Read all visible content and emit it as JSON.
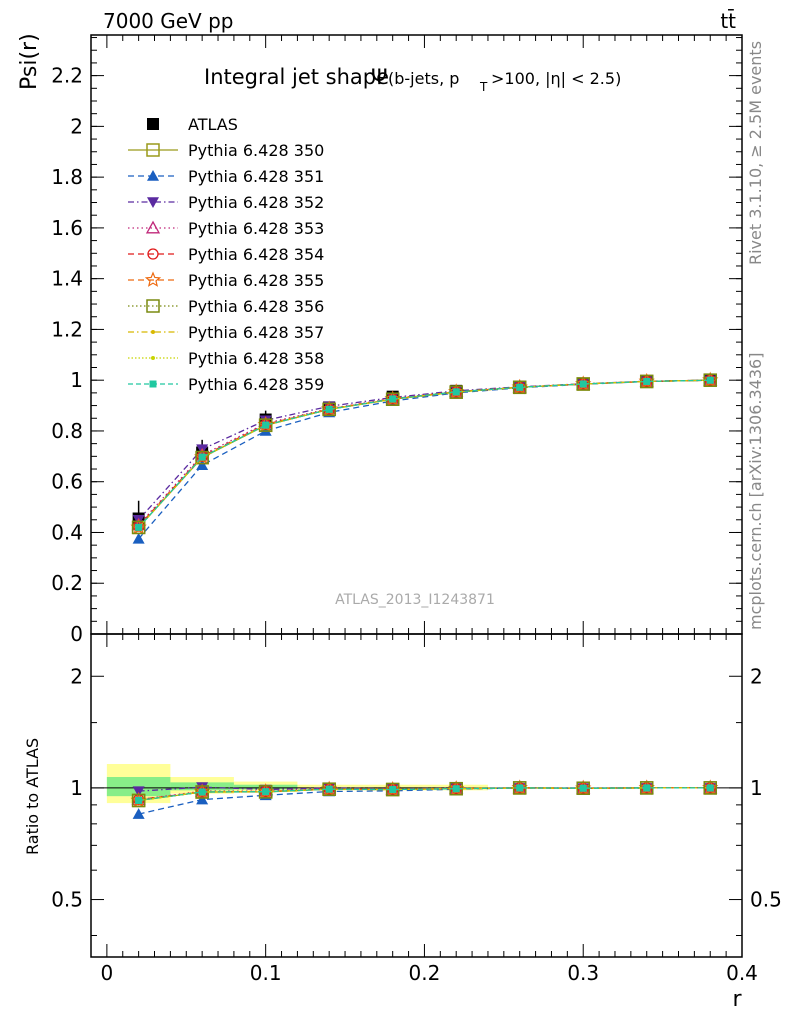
{
  "header": {
    "left": "7000 GeV pp",
    "right": "tt̄"
  },
  "side_labels": {
    "rivet": "Rivet 3.1.10, ≥ 2.5M events",
    "mcplots": "mcplots.cern.ch [arXiv:1306.3436]"
  },
  "title": {
    "main": "Integral jet shape",
    "symbol": "Ψ",
    "cond_a": "(b-jets, p",
    "cond_sub": "T",
    "cond_b": ">100, |η| < 2.5)"
  },
  "watermark": "ATLAS_2013_I1243871",
  "legend_entries": [
    "ATLAS",
    "Pythia 6.428 350",
    "Pythia 6.428 351",
    "Pythia 6.428 352",
    "Pythia 6.428 353",
    "Pythia 6.428 354",
    "Pythia 6.428 355",
    "Pythia 6.428 356",
    "Pythia 6.428 357",
    "Pythia 6.428 358",
    "Pythia 6.428 359"
  ],
  "chart_data": {
    "type": "line",
    "x": [
      0.02,
      0.06,
      0.1,
      0.14,
      0.18,
      0.22,
      0.26,
      0.3,
      0.34,
      0.38
    ],
    "main_panel": {
      "ylabel": "Psi(r)",
      "ylim": [
        0,
        2.36
      ],
      "yticks": [
        0,
        0.2,
        0.4,
        0.6,
        0.8,
        1,
        1.2,
        1.4,
        1.6,
        1.8,
        2,
        2.2
      ],
      "ytick_labels": [
        "0",
        "0.2",
        "0.4",
        "0.6",
        "0.8",
        "1",
        "1.2",
        "1.4",
        "1.6",
        "1.8",
        "2",
        "2.2"
      ]
    },
    "ratio_panel": {
      "ylabel": "Ratio to ATLAS",
      "scale": "log",
      "ylim": [
        0.35,
        2.6
      ],
      "yticks": [
        0.5,
        1,
        2
      ],
      "ytick_labels": [
        "0.5",
        "1",
        "2"
      ],
      "band_outer": [
        [
          0.0,
          0.04,
          0.91,
          1.16
        ],
        [
          0.04,
          0.08,
          0.965,
          1.07
        ],
        [
          0.08,
          0.12,
          0.975,
          1.04
        ],
        [
          0.12,
          0.24,
          0.985,
          1.02
        ]
      ],
      "band_inner": [
        [
          0.0,
          0.04,
          0.95,
          1.07
        ],
        [
          0.04,
          0.08,
          0.985,
          1.035
        ],
        [
          0.08,
          0.12,
          0.99,
          1.02
        ]
      ]
    },
    "xlabel": "r",
    "xlim": [
      -0.01,
      0.4
    ],
    "xticks": [
      0,
      0.1,
      0.2,
      0.3,
      0.4
    ],
    "xtick_labels": [
      "0",
      "0.1",
      "0.2",
      "0.3",
      "0.4"
    ],
    "data": {
      "name": "ATLAS",
      "y": [
        0.455,
        0.715,
        0.845,
        0.893,
        0.935,
        0.958,
        0.973,
        0.985,
        0.995,
        1.0
      ],
      "yerr_low": [
        0.04,
        0.03,
        0.02,
        0.015,
        0.01,
        0.01,
        0.005,
        0.005,
        0.003,
        0.002
      ],
      "yerr_high": [
        0.07,
        0.05,
        0.035,
        0.02,
        0.02,
        0.01,
        0.005,
        0.005,
        0.003,
        0.002
      ],
      "color": "#000000"
    },
    "series": [
      {
        "name": "Pythia 6.428 350",
        "color": "#9a9a1a",
        "marker": "open-square",
        "dash": "",
        "y": [
          0.42,
          0.695,
          0.822,
          0.885,
          0.925,
          0.953,
          0.972,
          0.985,
          0.995,
          1.0
        ],
        "ratio": [
          0.925,
          0.975,
          0.975,
          0.992,
          0.99,
          0.995,
          1.0,
          0.998,
          1.0,
          1.0
        ]
      },
      {
        "name": "Pythia 6.428 351",
        "color": "#1a5fc0",
        "marker": "filled-triangle-up",
        "dash": "6,4",
        "y": [
          0.375,
          0.665,
          0.8,
          0.873,
          0.918,
          0.95,
          0.97,
          0.984,
          0.995,
          1.0
        ],
        "ratio": [
          0.85,
          0.93,
          0.955,
          0.978,
          0.982,
          0.992,
          1.0,
          0.998,
          1.0,
          1.0
        ]
      },
      {
        "name": "Pythia 6.428 352",
        "color": "#5a2aa0",
        "marker": "filled-triangle-down",
        "dash": "6,3,1.5,3",
        "y": [
          0.45,
          0.728,
          0.842,
          0.897,
          0.932,
          0.958,
          0.974,
          0.986,
          0.996,
          1.0
        ],
        "ratio": [
          0.98,
          1.005,
          0.99,
          1.0,
          0.995,
          0.998,
          1.0,
          0.999,
          1.0,
          1.0
        ]
      },
      {
        "name": "Pythia 6.428 353",
        "color": "#c0287a",
        "marker": "open-triangle-up",
        "dash": "1.5,3",
        "y": [
          0.43,
          0.705,
          0.83,
          0.888,
          0.928,
          0.955,
          0.973,
          0.985,
          0.995,
          1.0
        ],
        "ratio": [
          0.93,
          0.98,
          0.98,
          0.995,
          0.992,
          0.997,
          1.0,
          0.999,
          1.0,
          1.0
        ]
      },
      {
        "name": "Pythia 6.428 354",
        "color": "#e01a1a",
        "marker": "open-circle",
        "dash": "6,4",
        "y": [
          0.425,
          0.7,
          0.826,
          0.886,
          0.927,
          0.954,
          0.972,
          0.985,
          0.995,
          1.0
        ],
        "ratio": [
          0.93,
          0.975,
          0.978,
          0.993,
          0.991,
          0.996,
          1.0,
          0.998,
          1.0,
          1.0
        ]
      },
      {
        "name": "Pythia 6.428 355",
        "color": "#ee6a10",
        "marker": "open-star",
        "dash": "6,4",
        "y": [
          0.42,
          0.697,
          0.824,
          0.886,
          0.926,
          0.954,
          0.972,
          0.985,
          0.995,
          1.0
        ],
        "ratio": [
          0.925,
          0.975,
          0.977,
          0.992,
          0.99,
          0.995,
          1.0,
          0.998,
          1.0,
          1.0
        ]
      },
      {
        "name": "Pythia 6.428 356",
        "color": "#7a8a10",
        "marker": "open-square",
        "dash": "1.5,2.5",
        "y": [
          0.42,
          0.695,
          0.823,
          0.885,
          0.925,
          0.953,
          0.972,
          0.985,
          0.995,
          1.0
        ],
        "ratio": [
          0.925,
          0.975,
          0.976,
          0.992,
          0.99,
          0.995,
          1.0,
          0.998,
          1.0,
          1.0
        ]
      },
      {
        "name": "Pythia 6.428 357",
        "color": "#d8b800",
        "marker": "small-dot",
        "dash": "6,3,1.5,3",
        "y": [
          0.42,
          0.696,
          0.823,
          0.885,
          0.925,
          0.953,
          0.972,
          0.985,
          0.995,
          1.0
        ],
        "ratio": [
          0.925,
          0.975,
          0.976,
          0.992,
          0.99,
          0.995,
          1.0,
          0.998,
          1.0,
          1.0
        ]
      },
      {
        "name": "Pythia 6.428 358",
        "color": "#c8d400",
        "marker": "small-dot",
        "dash": "1.5,2",
        "y": [
          0.42,
          0.696,
          0.823,
          0.885,
          0.925,
          0.953,
          0.972,
          0.985,
          0.995,
          1.0
        ],
        "ratio": [
          0.925,
          0.975,
          0.976,
          0.992,
          0.99,
          0.995,
          1.0,
          0.998,
          1.0,
          1.0
        ]
      },
      {
        "name": "Pythia 6.428 359",
        "color": "#20c8a0",
        "marker": "filled-square-small",
        "dash": "5,3",
        "y": [
          0.42,
          0.697,
          0.823,
          0.885,
          0.926,
          0.954,
          0.972,
          0.985,
          0.995,
          1.0
        ],
        "ratio": [
          0.925,
          0.975,
          0.977,
          0.992,
          0.99,
          0.995,
          1.0,
          0.998,
          1.0,
          1.0
        ]
      }
    ],
    "band_colors": {
      "outer": "#ffff99",
      "inner": "#88ee88"
    }
  }
}
